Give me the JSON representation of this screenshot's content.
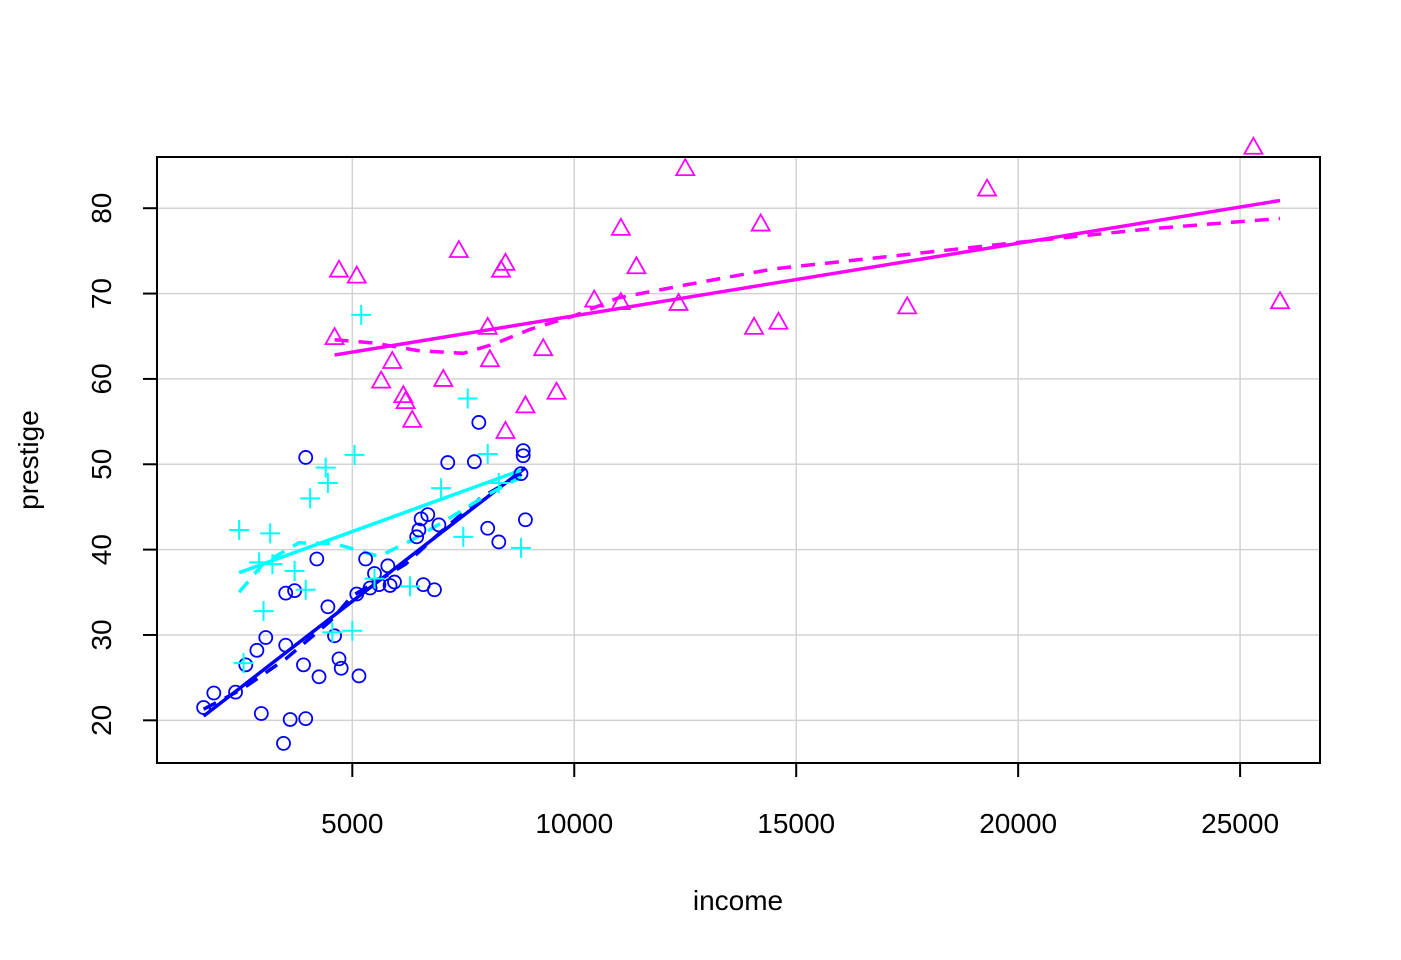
{
  "chart_data": {
    "type": "scatter",
    "xlabel": "income",
    "ylabel": "prestige",
    "xlim": [
      600,
      26800
    ],
    "ylim": [
      15,
      86
    ],
    "x_ticks": [
      5000,
      10000,
      15000,
      20000,
      25000
    ],
    "y_ticks": [
      20,
      30,
      40,
      50,
      60,
      70,
      80
    ],
    "grid": true,
    "series": [
      {
        "marker": "circle",
        "color": "#0000ff",
        "points": [
          [
            1650,
            21.5
          ],
          [
            1880,
            23.2
          ],
          [
            2370,
            23.3
          ],
          [
            2600,
            26.5
          ],
          [
            2850,
            28.2
          ],
          [
            2950,
            20.8
          ],
          [
            3050,
            29.7
          ],
          [
            3450,
            17.3
          ],
          [
            3500,
            28.8
          ],
          [
            3500,
            34.9
          ],
          [
            3600,
            20.1
          ],
          [
            3700,
            35.2
          ],
          [
            3900,
            26.5
          ],
          [
            3950,
            50.8
          ],
          [
            3950,
            20.2
          ],
          [
            4200,
            38.9
          ],
          [
            4250,
            25.1
          ],
          [
            4450,
            33.3
          ],
          [
            4600,
            29.9
          ],
          [
            4700,
            27.2
          ],
          [
            4750,
            26.1
          ],
          [
            5100,
            34.8
          ],
          [
            5150,
            25.2
          ],
          [
            5300,
            38.9
          ],
          [
            5400,
            35.5
          ],
          [
            5500,
            37.2
          ],
          [
            5600,
            35.9
          ],
          [
            5800,
            38.1
          ],
          [
            5850,
            35.8
          ],
          [
            5950,
            36.2
          ],
          [
            6450,
            41.5
          ],
          [
            6500,
            42.3
          ],
          [
            6550,
            43.6
          ],
          [
            6600,
            35.9
          ],
          [
            6700,
            44.1
          ],
          [
            6850,
            35.3
          ],
          [
            6950,
            42.9
          ],
          [
            7150,
            50.2
          ],
          [
            7750,
            50.3
          ],
          [
            7850,
            54.9
          ],
          [
            8050,
            42.5
          ],
          [
            8300,
            40.9
          ],
          [
            8800,
            48.9
          ],
          [
            8850,
            51.0
          ],
          [
            8850,
            51.6
          ],
          [
            8900,
            43.5
          ]
        ]
      },
      {
        "marker": "plus",
        "color": "#00ffff",
        "points": [
          [
            2450,
            42.3
          ],
          [
            2550,
            26.7
          ],
          [
            2900,
            38.5
          ],
          [
            3000,
            32.8
          ],
          [
            3150,
            41.9
          ],
          [
            3200,
            38.3
          ],
          [
            3700,
            37.5
          ],
          [
            3950,
            35.3
          ],
          [
            4050,
            46.0
          ],
          [
            4400,
            49.6
          ],
          [
            4450,
            47.8
          ],
          [
            4550,
            30.3
          ],
          [
            5000,
            30.5
          ],
          [
            5050,
            51.1
          ],
          [
            5200,
            67.5
          ],
          [
            5500,
            36.6
          ],
          [
            6300,
            35.7
          ],
          [
            7000,
            47.2
          ],
          [
            7500,
            41.5
          ],
          [
            7600,
            57.7
          ],
          [
            8050,
            51.2
          ],
          [
            8300,
            47.8
          ],
          [
            8800,
            40.2
          ]
        ]
      },
      {
        "marker": "triangle",
        "color": "#ff00ff",
        "points": [
          [
            4600,
            64.9
          ],
          [
            4700,
            72.8
          ],
          [
            5100,
            72.1
          ],
          [
            5650,
            59.8
          ],
          [
            5900,
            62.1
          ],
          [
            6150,
            58.1
          ],
          [
            6200,
            57.4
          ],
          [
            6350,
            55.2
          ],
          [
            7050,
            60.0
          ],
          [
            7400,
            75.1
          ],
          [
            8050,
            66.1
          ],
          [
            8100,
            62.3
          ],
          [
            8350,
            72.8
          ],
          [
            8450,
            73.6
          ],
          [
            8450,
            53.9
          ],
          [
            8900,
            56.9
          ],
          [
            9300,
            63.6
          ],
          [
            9600,
            58.5
          ],
          [
            10450,
            69.3
          ],
          [
            11050,
            77.7
          ],
          [
            11050,
            69.0
          ],
          [
            11400,
            73.2
          ],
          [
            12350,
            68.9
          ],
          [
            12500,
            84.7
          ],
          [
            14050,
            66.1
          ],
          [
            14200,
            78.2
          ],
          [
            14600,
            66.7
          ],
          [
            17500,
            68.5
          ],
          [
            19300,
            82.3
          ],
          [
            25300,
            87.2
          ],
          [
            25900,
            69.1
          ]
        ]
      }
    ],
    "fit_lines": [
      {
        "color": "#0000ff",
        "style": "solid",
        "points": [
          [
            1650,
            20.5
          ],
          [
            8900,
            49.6
          ]
        ]
      },
      {
        "color": "#0000ff",
        "style": "dashed",
        "points": [
          [
            1650,
            21.3
          ],
          [
            2500,
            23.6
          ],
          [
            3500,
            27.2
          ],
          [
            4500,
            31.6
          ],
          [
            5000,
            34.6
          ],
          [
            5600,
            36.4
          ],
          [
            6200,
            38.3
          ],
          [
            7000,
            42.1
          ],
          [
            7900,
            46.1
          ],
          [
            8900,
            49.1
          ]
        ]
      },
      {
        "color": "#00ffff",
        "style": "solid",
        "points": [
          [
            2450,
            37.3
          ],
          [
            8800,
            49.3
          ]
        ]
      },
      {
        "color": "#00ffff",
        "style": "dashed",
        "points": [
          [
            2450,
            35.0
          ],
          [
            3000,
            38.4
          ],
          [
            3800,
            40.8
          ],
          [
            4600,
            40.7
          ],
          [
            5200,
            39.8
          ],
          [
            5600,
            39.2
          ],
          [
            6300,
            41.0
          ],
          [
            7100,
            43.4
          ],
          [
            8000,
            46.3
          ],
          [
            8800,
            48.5
          ]
        ]
      },
      {
        "color": "#ff00ff",
        "style": "solid",
        "points": [
          [
            4600,
            62.8
          ],
          [
            25900,
            80.9
          ]
        ]
      },
      {
        "color": "#ff00ff",
        "style": "dashed",
        "points": [
          [
            4600,
            64.6
          ],
          [
            5500,
            64.2
          ],
          [
            6500,
            63.3
          ],
          [
            7500,
            63.0
          ],
          [
            8200,
            64.1
          ],
          [
            9000,
            65.8
          ],
          [
            10000,
            67.4
          ],
          [
            11000,
            69.5
          ],
          [
            12500,
            71.0
          ],
          [
            14500,
            72.9
          ],
          [
            17000,
            74.3
          ],
          [
            20000,
            76.0
          ],
          [
            23000,
            77.6
          ],
          [
            25900,
            78.8
          ]
        ]
      }
    ]
  }
}
